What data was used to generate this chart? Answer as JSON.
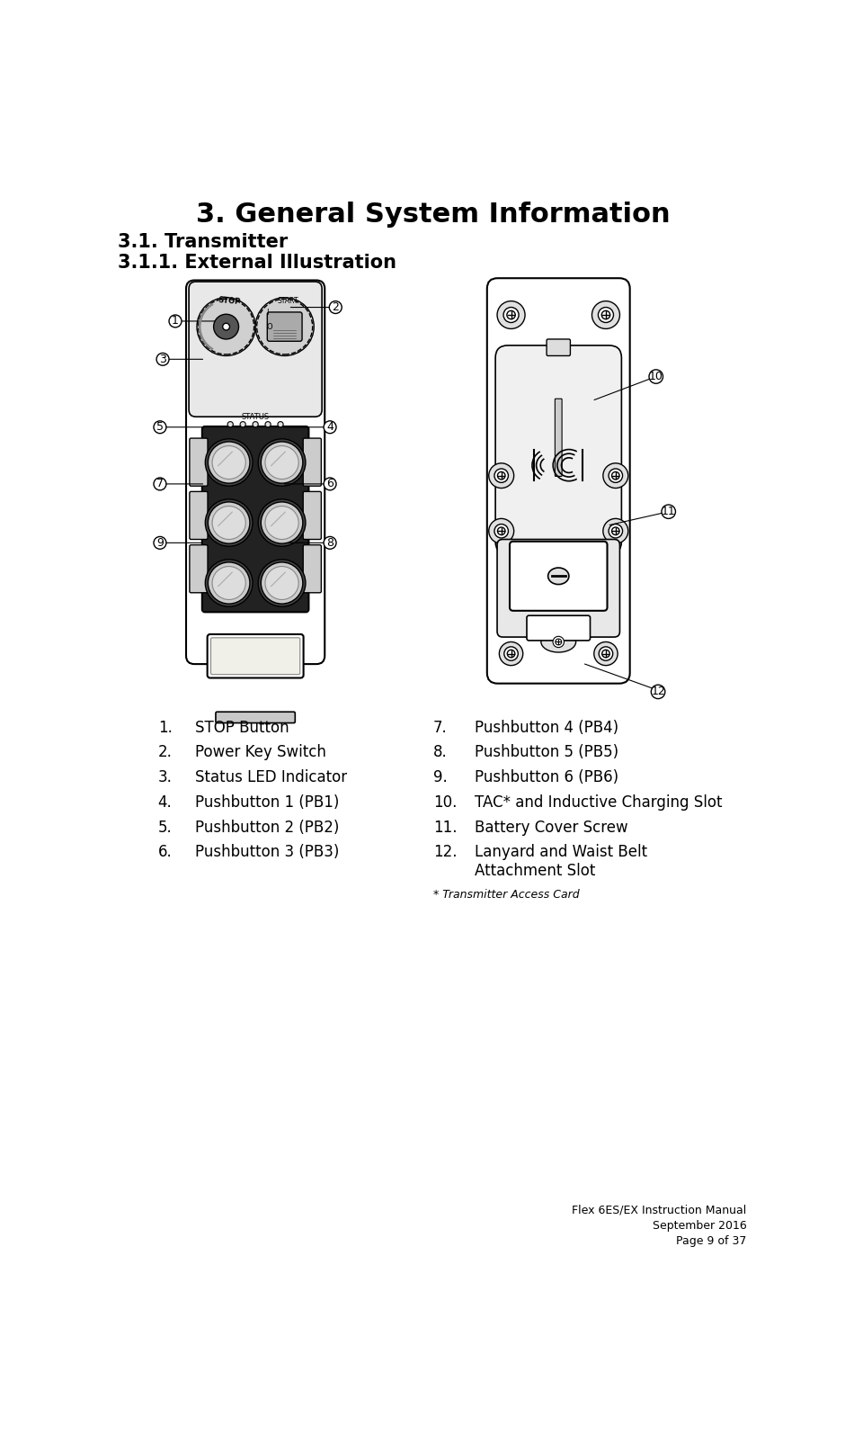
{
  "title": "3. General System Information",
  "subtitle1": "3.1. Transmitter",
  "subtitle2": "3.1.1. External Illustration",
  "title_fontsize": 22,
  "subtitle_fontsize": 15,
  "body_fontsize": 12,
  "footnote_fontsize": 9,
  "footer_fontsize": 9,
  "bg_color": "#ffffff",
  "text_color": "#000000",
  "left_items": [
    [
      "1.",
      "STOP Button"
    ],
    [
      "2.",
      "Power Key Switch"
    ],
    [
      "3.",
      "Status LED Indicator"
    ],
    [
      "4.",
      "Pushbutton 1 (PB1)"
    ],
    [
      "5.",
      "Pushbutton 2 (PB2)"
    ],
    [
      "6.",
      "Pushbutton 3 (PB3)"
    ]
  ],
  "right_items": [
    [
      "7.",
      "Pushbutton 4 (PB4)"
    ],
    [
      "8.",
      "Pushbutton 5 (PB5)"
    ],
    [
      "9.",
      "Pushbutton 6 (PB6)"
    ],
    [
      "10.",
      "TAC* and Inductive Charging Slot"
    ],
    [
      "11.",
      "Battery Cover Screw"
    ],
    [
      "12.",
      "Lanyard and Waist Belt\nAttachment Slot"
    ]
  ],
  "footnote": "* Transmitter Access Card",
  "footer_line1": "Flex 6ES/EX Instruction Manual",
  "footer_line2": "September 2016",
  "footer_line3": "Page 9 of 37"
}
